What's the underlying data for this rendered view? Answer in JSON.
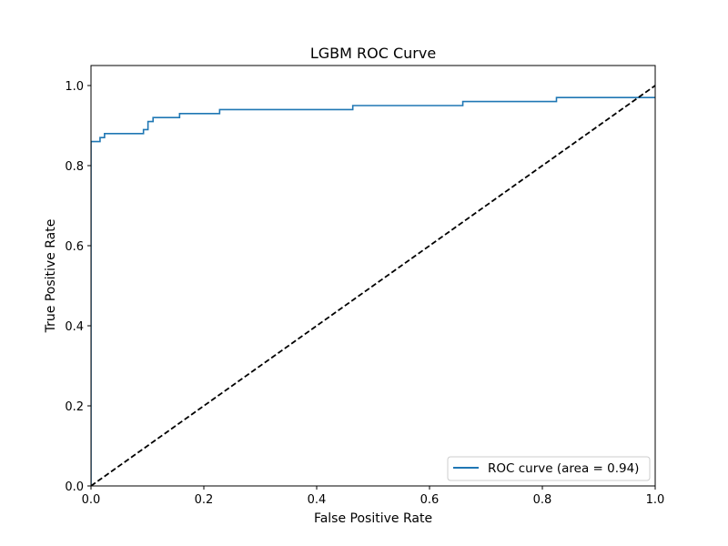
{
  "chart_data": {
    "type": "line",
    "title": "LGBM ROC Curve",
    "xlabel": "False Positive Rate",
    "ylabel": "True Positive Rate",
    "xlim": [
      0.0,
      1.0
    ],
    "ylim": [
      0.0,
      1.05
    ],
    "xticks": [
      "0.0",
      "0.2",
      "0.4",
      "0.6",
      "0.8",
      "1.0"
    ],
    "yticks": [
      "0.0",
      "0.2",
      "0.4",
      "0.6",
      "0.8",
      "1.0"
    ],
    "grid": false,
    "legend_position": "lower-right",
    "series": [
      {
        "name": "ROC curve (area = 0.94)",
        "color": "#1f77b4",
        "style": "solid",
        "x": [
          0.0,
          0.0,
          0.016,
          0.016,
          0.024,
          0.024,
          0.093,
          0.093,
          0.101,
          0.101,
          0.11,
          0.11,
          0.157,
          0.157,
          0.228,
          0.228,
          0.464,
          0.464,
          0.659,
          0.659,
          0.825,
          0.825,
          1.0
        ],
        "y": [
          0.0,
          0.86,
          0.86,
          0.87,
          0.87,
          0.88,
          0.88,
          0.89,
          0.89,
          0.91,
          0.91,
          0.92,
          0.92,
          0.93,
          0.93,
          0.94,
          0.94,
          0.95,
          0.95,
          0.96,
          0.96,
          0.97,
          0.97
        ]
      },
      {
        "name": "",
        "color": "#000000",
        "style": "dashed",
        "x": [
          0.0,
          1.0
        ],
        "y": [
          0.0,
          1.0
        ]
      }
    ]
  }
}
